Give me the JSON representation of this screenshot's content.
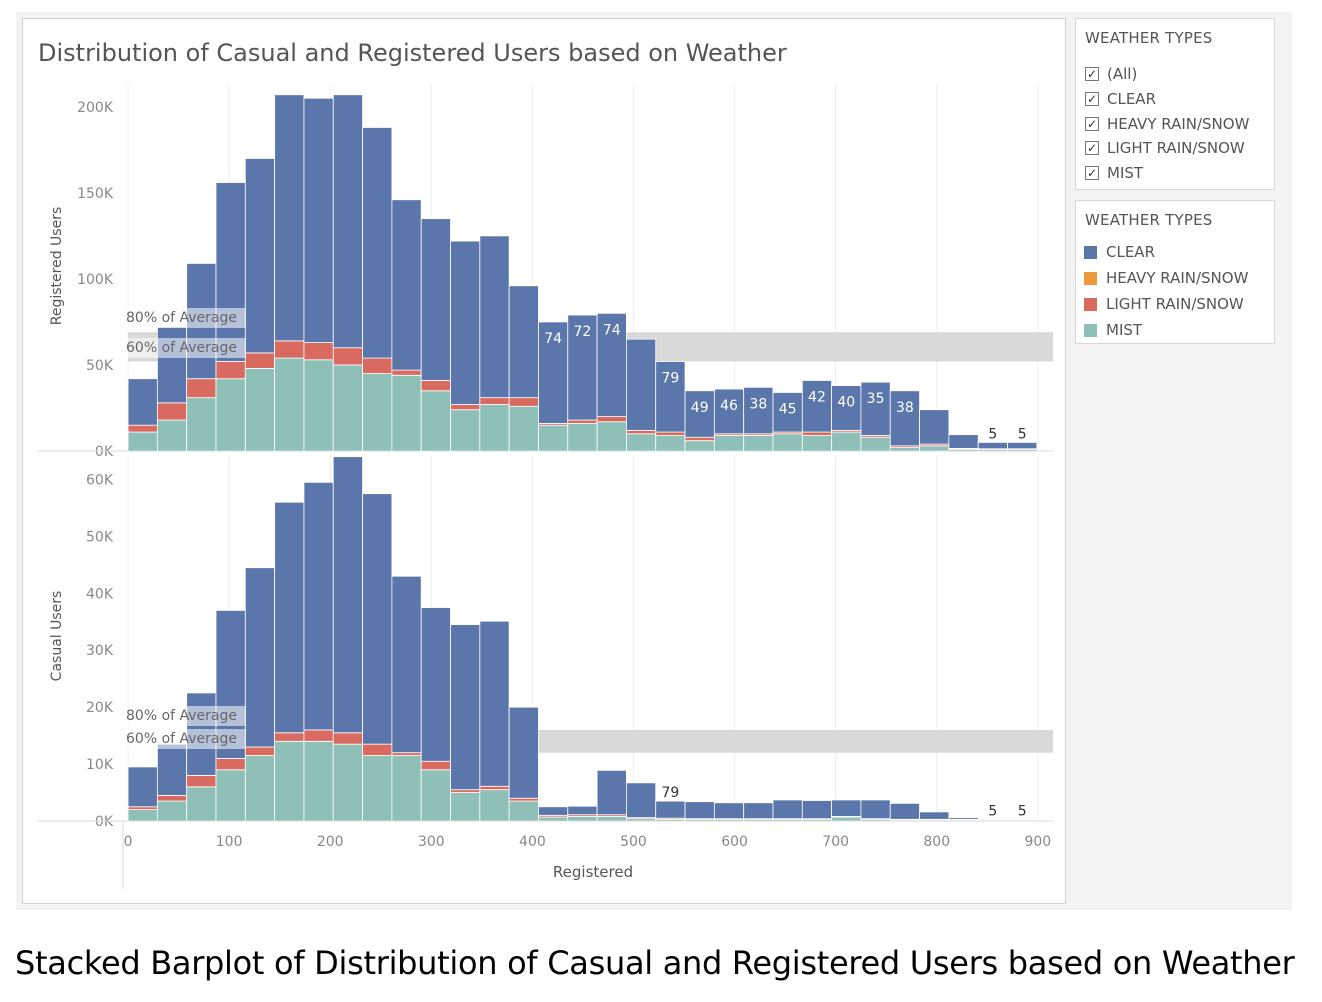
{
  "filter": {
    "title": "WEATHER TYPES",
    "items": [
      {
        "label": "(All)",
        "checked": true
      },
      {
        "label": "CLEAR",
        "checked": true
      },
      {
        "label": "HEAVY RAIN/SNOW",
        "checked": true
      },
      {
        "label": "LIGHT RAIN/SNOW",
        "checked": true
      },
      {
        "label": "MIST",
        "checked": true
      }
    ]
  },
  "legend": {
    "title": "WEATHER TYPES",
    "items": [
      {
        "label": "CLEAR",
        "color": "#5b76ab"
      },
      {
        "label": "HEAVY RAIN/SNOW",
        "color": "#ee9a3a"
      },
      {
        "label": "LIGHT RAIN/SNOW",
        "color": "#d96a60"
      },
      {
        "label": "MIST",
        "color": "#8fc0b7"
      }
    ]
  },
  "caption": "Stacked Barplot of Distribution of Casual and Registered Users based on Weather",
  "chart_data": {
    "type": "bar",
    "stacked": true,
    "title": "Distribution of Casual and Registered Users based on Weather",
    "xlabel": "Registered",
    "x_ticks": [
      0,
      100,
      200,
      300,
      400,
      500,
      600,
      700,
      800,
      900
    ],
    "xlim": [
      -5,
      915
    ],
    "bin_width": 29,
    "bins": [
      0,
      29,
      58,
      87,
      116,
      145,
      174,
      203,
      232,
      261,
      290,
      319,
      348,
      377,
      406,
      435,
      464,
      493,
      522,
      551,
      580,
      609,
      638,
      667,
      696,
      725,
      754,
      783,
      812,
      841,
      870
    ],
    "colors": {
      "CLEAR": "#5b76ab",
      "HEAVY RAIN/SNOW": "#ee9a3a",
      "LIGHT RAIN/SNOW": "#d96a60",
      "MIST": "#8fc0b7"
    },
    "reference_bands": [
      {
        "label": "80% of Average"
      },
      {
        "label": "60% of Average"
      }
    ],
    "panels": [
      {
        "ylabel": "Registered Users",
        "ylim": [
          0,
          215000
        ],
        "y_ticks": [
          0,
          50000,
          100000,
          150000,
          200000
        ],
        "y_tick_labels": [
          "0K",
          "50K",
          "100K",
          "150K",
          "200K"
        ],
        "band": {
          "low": 52000,
          "high": 69000,
          "x_start": 0
        },
        "series": [
          {
            "name": "MIST",
            "values": [
              11000,
              18000,
              31000,
              42000,
              48000,
              54000,
              53000,
              50000,
              45000,
              44000,
              35000,
              24000,
              27000,
              26000,
              15000,
              16000,
              17000,
              10000,
              9000,
              6000,
              9000,
              9000,
              10000,
              9000,
              11000,
              8000,
              2000,
              3000,
              1000,
              1000,
              1000
            ]
          },
          {
            "name": "LIGHT RAIN/SNOW",
            "values": [
              4000,
              10000,
              11000,
              10000,
              9000,
              10000,
              10000,
              10000,
              9000,
              3000,
              6000,
              3000,
              4000,
              5000,
              1000,
              2000,
              3000,
              2000,
              2000,
              2000,
              1000,
              1000,
              1000,
              2000,
              1000,
              1000,
              1000,
              1000,
              500,
              300,
              300
            ]
          },
          {
            "name": "HEAVY RAIN/SNOW",
            "values": [
              0,
              0,
              0,
              0,
              0,
              0,
              0,
              0,
              0,
              0,
              0,
              0,
              0,
              0,
              0,
              0,
              0,
              0,
              0,
              0,
              0,
              0,
              0,
              0,
              0,
              0,
              0,
              0,
              0,
              0,
              0
            ]
          },
          {
            "name": "CLEAR",
            "values": [
              27000,
              44000,
              67000,
              104000,
              113000,
              143000,
              142000,
              147000,
              134000,
              99000,
              94000,
              95000,
              94000,
              65000,
              59000,
              61000,
              60000,
              53000,
              41000,
              27000,
              26000,
              27000,
              23000,
              30000,
              26000,
              31000,
              32000,
              20000,
              8000,
              3700,
              3700
            ]
          }
        ],
        "labels": [
          {
            "bin": 14,
            "text": "74"
          },
          {
            "bin": 15,
            "text": "72"
          },
          {
            "bin": 16,
            "text": "74"
          },
          {
            "bin": 18,
            "text": "79"
          },
          {
            "bin": 19,
            "text": "49"
          },
          {
            "bin": 20,
            "text": "46"
          },
          {
            "bin": 21,
            "text": "38"
          },
          {
            "bin": 22,
            "text": "45"
          },
          {
            "bin": 23,
            "text": "42"
          },
          {
            "bin": 24,
            "text": "40"
          },
          {
            "bin": 25,
            "text": "35"
          },
          {
            "bin": 26,
            "text": "38"
          },
          {
            "bin": 29,
            "text": "5"
          },
          {
            "bin": 30,
            "text": "5"
          }
        ]
      },
      {
        "ylabel": "Casual Users",
        "ylim": [
          0,
          65000
        ],
        "y_ticks": [
          0,
          10000,
          20000,
          30000,
          40000,
          50000,
          60000
        ],
        "y_tick_labels": [
          "0K",
          "10K",
          "20K",
          "30K",
          "40K",
          "50K",
          "60K"
        ],
        "band": {
          "low": 12000,
          "high": 16000,
          "x_start": 400
        },
        "series": [
          {
            "name": "MIST",
            "values": [
              2000,
              3500,
              6000,
              9000,
              11500,
              14000,
              14000,
              13500,
              11500,
              11500,
              9000,
              5000,
              5500,
              3500,
              700,
              800,
              800,
              400,
              300,
              300,
              300,
              300,
              300,
              300,
              700,
              300,
              200,
              200,
              200,
              100,
              100
            ]
          },
          {
            "name": "LIGHT RAIN/SNOW",
            "values": [
              500,
              1000,
              2000,
              2000,
              1500,
              1500,
              2000,
              2000,
              2000,
              500,
              1500,
              500,
              600,
              500,
              300,
              300,
              300,
              200,
              200,
              100,
              100,
              100,
              100,
              100,
              100,
              100,
              100,
              100,
              100,
              50,
              50
            ]
          },
          {
            "name": "HEAVY RAIN/SNOW",
            "values": [
              0,
              0,
              0,
              0,
              0,
              0,
              0,
              0,
              0,
              0,
              0,
              0,
              0,
              0,
              0,
              0,
              0,
              0,
              0,
              0,
              0,
              0,
              0,
              0,
              0,
              0,
              0,
              0,
              0,
              0,
              0
            ]
          },
          {
            "name": "CLEAR",
            "values": [
              7000,
              9000,
              14500,
              26000,
              31500,
              40500,
              43500,
              48500,
              44000,
              31000,
              27000,
              29000,
              29000,
              16000,
              1500,
              1500,
              7800,
              6100,
              3000,
              3000,
              2800,
              2800,
              3300,
              3200,
              2900,
              3300,
              2800,
              1300,
              300,
              150,
              150
            ]
          }
        ],
        "labels": [
          {
            "bin": 18,
            "text": "79"
          },
          {
            "bin": 29,
            "text": "5"
          },
          {
            "bin": 30,
            "text": "5"
          }
        ]
      }
    ]
  }
}
